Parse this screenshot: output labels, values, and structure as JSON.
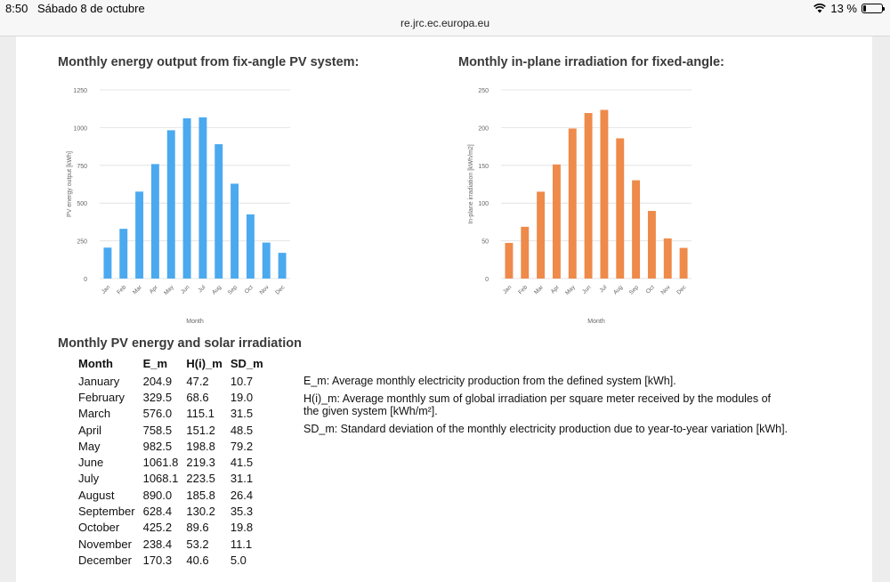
{
  "status_bar": {
    "time": "8:50",
    "date": "Sábado 8 de octubre",
    "battery": "13 %",
    "battery_level_percent": 13
  },
  "browser": {
    "url": "re.jrc.ec.europa.eu"
  },
  "charts": {
    "energy": {
      "title": "Monthly energy output from fix-angle PV system:",
      "color": "#4ba9ef"
    },
    "irradiation": {
      "title": "Monthly in-plane irradiation for fixed-angle:",
      "color": "#ee8a4a"
    }
  },
  "chart_data": [
    {
      "type": "bar",
      "title": "Monthly energy output from fix-angle PV system:",
      "categories": [
        "Jan",
        "Feb",
        "Mar",
        "Apr",
        "May",
        "Jun",
        "Jul",
        "Aug",
        "Sep",
        "Oct",
        "Nov",
        "Dec"
      ],
      "values": [
        204.9,
        329.5,
        576.0,
        758.5,
        982.5,
        1061.8,
        1068.1,
        890.0,
        628.4,
        425.2,
        238.4,
        170.3
      ],
      "xlabel": "Month",
      "ylabel": "PV energy output [kWh]",
      "ylim": [
        0,
        1250
      ],
      "yticks": [
        "0",
        "250",
        "500",
        "750",
        "1000",
        "1250"
      ],
      "grid": true,
      "color": "#4ba9ef"
    },
    {
      "type": "bar",
      "title": "Monthly in-plane irradiation for fixed-angle:",
      "categories": [
        "Jan",
        "Feb",
        "Mar",
        "Apr",
        "May",
        "Jun",
        "Jul",
        "Aug",
        "Sep",
        "Oct",
        "Nov",
        "Dec"
      ],
      "values": [
        47.2,
        68.6,
        115.1,
        151.2,
        198.8,
        219.3,
        223.5,
        185.8,
        130.2,
        89.6,
        53.2,
        40.6
      ],
      "xlabel": "Month",
      "ylabel": "In-plane irradiation [kWh/m2]",
      "ylim": [
        0,
        250
      ],
      "yticks": [
        "0",
        "50",
        "100",
        "150",
        "200",
        "250"
      ],
      "grid": true,
      "color": "#ee8a4a"
    }
  ],
  "table": {
    "title": "Monthly PV energy and solar irradiation",
    "headers": [
      "Month",
      "E_m",
      "H(i)_m",
      "SD_m"
    ],
    "rows": [
      [
        "January",
        "204.9",
        "47.2",
        "10.7"
      ],
      [
        "February",
        "329.5",
        "68.6",
        "19.0"
      ],
      [
        "March",
        "576.0",
        "115.1",
        "31.5"
      ],
      [
        "April",
        "758.5",
        "151.2",
        "48.5"
      ],
      [
        "May",
        "982.5",
        "198.8",
        "79.2"
      ],
      [
        "June",
        "1061.8",
        "219.3",
        "41.5"
      ],
      [
        "July",
        "1068.1",
        "223.5",
        "31.1"
      ],
      [
        "August",
        "890.0",
        "185.8",
        "26.4"
      ],
      [
        "September",
        "628.4",
        "130.2",
        "35.3"
      ],
      [
        "October",
        "425.2",
        "89.6",
        "19.8"
      ],
      [
        "November",
        "238.4",
        "53.2",
        "11.1"
      ],
      [
        "December",
        "170.3",
        "40.6",
        "5.0"
      ]
    ],
    "notes": [
      "E_m: Average monthly electricity production from the defined system [kWh].",
      "H(i)_m: Average monthly sum of global irradiation per square meter received by the modules of the given system [kWh/m²].",
      "SD_m: Standard deviation of the monthly electricity production due to year-to-year variation [kWh]."
    ]
  }
}
